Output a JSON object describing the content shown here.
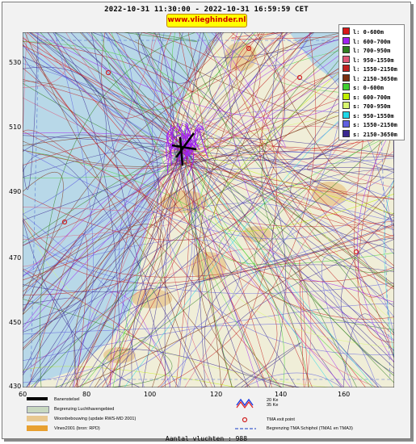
{
  "header": {
    "period": "2022-10-31 11:30:00 - 2022-10-31 16:59:59 CET",
    "url_badge": "www.vlieghinder.nl"
  },
  "axes": {
    "y_ticks": [
      "530",
      "510",
      "490",
      "470",
      "450",
      "430"
    ],
    "x_ticks": [
      "60",
      "80",
      "100",
      "120",
      "140",
      "160"
    ]
  },
  "legend": [
    {
      "label": "l: 0-600m",
      "color": "#d81818"
    },
    {
      "label": "l: 600-700m",
      "color": "#a020f0"
    },
    {
      "label": "l: 700-950m",
      "color": "#308020"
    },
    {
      "label": "l: 950-1550m",
      "color": "#e05878"
    },
    {
      "label": "l: 1550-2150m",
      "color": "#c02020"
    },
    {
      "label": "l: 2150-3650m",
      "color": "#7a3010"
    },
    {
      "label": "s: 0-600m",
      "color": "#40d030"
    },
    {
      "label": "s: 600-700m",
      "color": "#c0f000"
    },
    {
      "label": "s: 700-950m",
      "color": "#d8f870"
    },
    {
      "label": "s: 950-1550m",
      "color": "#20d8e8"
    },
    {
      "label": "s: 1550-2150m",
      "color": "#6060e0"
    },
    {
      "label": "s: 2150-3650m",
      "color": "#3a2890"
    }
  ],
  "map_legend": {
    "left": [
      {
        "label": "Banenstelsel",
        "color": "#000000"
      },
      {
        "label": "Begrenzing Luchthavengebied",
        "color": "#c8d8c0"
      },
      {
        "label": "Woonbebouwing (update RWS-MD 2001)",
        "color": "#e8c890"
      },
      {
        "label": "Vinex2001 (bron: RPD)",
        "color": "#e8a030"
      }
    ],
    "right": [
      {
        "label": "20 Ke\n35 Ke",
        "icon": "contour-lines-icon"
      },
      {
        "label": "TMA exit point",
        "icon": "exit-point-icon"
      },
      {
        "label": "Begrenzing TMA Schiphol  (TMA1 en TMA3)",
        "icon": "tma-boundary-icon"
      }
    ]
  },
  "footer": {
    "count_text": "Aantal vluchten : 988"
  },
  "colors": {
    "sea": "#b8d8e8",
    "land": "#f0eed8",
    "urban": "#e8c890"
  }
}
